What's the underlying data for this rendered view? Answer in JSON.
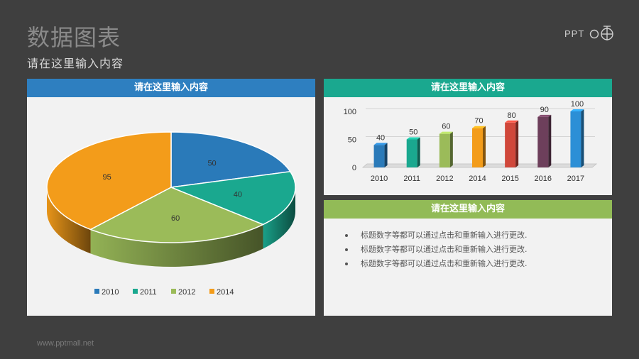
{
  "page": {
    "title": "数据图表",
    "subtitle": "请在这里输入内容",
    "logo_text": "PPT",
    "footer": "www.pptmall.net"
  },
  "pie_panel": {
    "header": "请在这里输入内容"
  },
  "bar_panel": {
    "header": "请在这里输入内容"
  },
  "text_panel": {
    "header": "请在这里输入内容",
    "bullets": [
      "标题数字等都可以通过点击和重新输入进行更改.",
      "标题数字等都可以通过点击和重新输入进行更改.",
      "标题数字等都可以通过点击和重新输入进行更改."
    ]
  },
  "chart_data": [
    {
      "type": "pie",
      "categories": [
        "2010",
        "2011",
        "2012",
        "2014"
      ],
      "values": [
        50,
        40,
        60,
        95
      ],
      "colors": [
        "#2a7ab9",
        "#1aa88f",
        "#9bbb59",
        "#f39c1a"
      ],
      "legend": "bottom",
      "style": "3d"
    },
    {
      "type": "bar",
      "categories": [
        "2010",
        "2011",
        "2012",
        "2014",
        "2015",
        "2016",
        "2017"
      ],
      "values": [
        40,
        50,
        60,
        70,
        80,
        90,
        100
      ],
      "colors": [
        "#2a7ab9",
        "#1aa88f",
        "#9bbb59",
        "#f39c1a",
        "#d0473a",
        "#6d3f5b",
        "#2c8fd6"
      ],
      "ylim": [
        0,
        100
      ],
      "yticks": [
        "0",
        "50",
        "100"
      ],
      "grid": true,
      "style": "3d"
    }
  ]
}
